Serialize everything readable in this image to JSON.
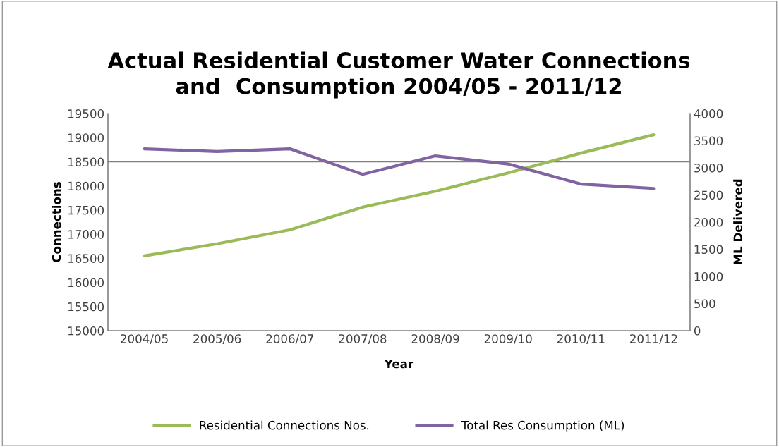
{
  "chart_data": {
    "type": "line",
    "title": "Actual Residential Customer Water Connections\nand  Consumption 2004/05 - 2011/12",
    "xlabel": "Year",
    "ylabel": "Connections",
    "y2label": "ML Delivered",
    "categories": [
      "2004/05",
      "2005/06",
      "2006/07",
      "2007/08",
      "2008/09",
      "2009/10",
      "2010/11",
      "2011/12"
    ],
    "series": [
      {
        "name": "Residential Connections Nos.",
        "color": "#9bbb59",
        "values": [
          16550,
          16800,
          17090,
          17560,
          17890,
          18270,
          18680,
          19060
        ]
      },
      {
        "name": "Total Res Consumption (ML)",
        "color": "#8064a2",
        "axis": "y2",
        "values": [
          3350,
          3300,
          3350,
          2880,
          3220,
          3070,
          2700,
          2620
        ]
      }
    ],
    "ylim": [
      15000,
      19500
    ],
    "yticks": [
      15000,
      15500,
      16000,
      16500,
      17000,
      17500,
      18000,
      18500,
      19000,
      19500
    ],
    "y2lim": [
      0,
      4000
    ],
    "y2ticks": [
      0,
      500,
      1000,
      1500,
      2000,
      2500,
      3000,
      3500,
      4000
    ],
    "ref_lines": [
      {
        "axis": "y",
        "value": 18500,
        "color": "#808080"
      }
    ],
    "legend": "bottom",
    "marker": "none",
    "line_style": "solid"
  }
}
